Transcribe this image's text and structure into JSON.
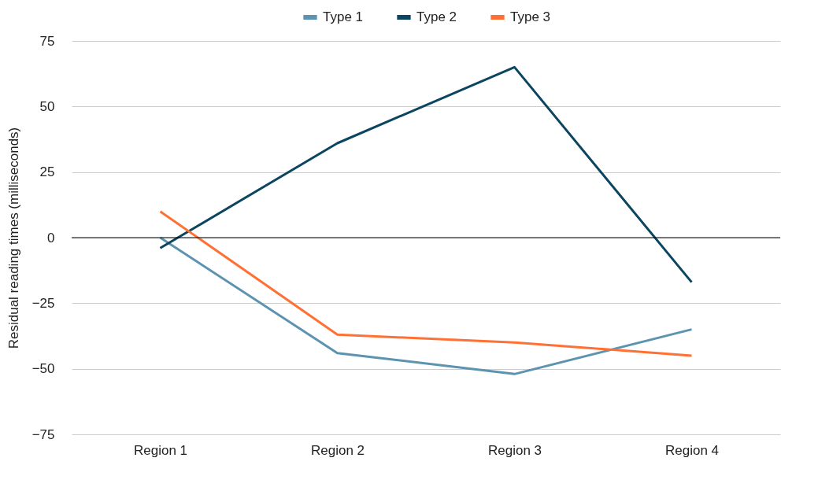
{
  "chart_data": {
    "type": "line",
    "ylabel": "Residual reading times (milliseconds)",
    "categories": [
      "Region 1",
      "Region 2",
      "Region 3",
      "Region 4"
    ],
    "series": [
      {
        "name": "Type 1",
        "color": "#5b93b0",
        "values": [
          0,
          -44,
          -52,
          -35
        ]
      },
      {
        "name": "Type 2",
        "color": "#0b4560",
        "values": [
          -4,
          36,
          65,
          -17
        ]
      },
      {
        "name": "Type 3",
        "color": "#ff7034",
        "values": [
          10,
          -37,
          -40,
          -45
        ]
      }
    ],
    "ylim": [
      -75,
      75
    ],
    "yticks": [
      -75,
      -50,
      -25,
      0,
      25,
      50,
      75
    ],
    "grid": "y",
    "legend": "top",
    "marker": "none",
    "line_style": "solid",
    "ref_lines": [
      {
        "axis": "y",
        "value": 0,
        "color": "#000000"
      }
    ]
  }
}
